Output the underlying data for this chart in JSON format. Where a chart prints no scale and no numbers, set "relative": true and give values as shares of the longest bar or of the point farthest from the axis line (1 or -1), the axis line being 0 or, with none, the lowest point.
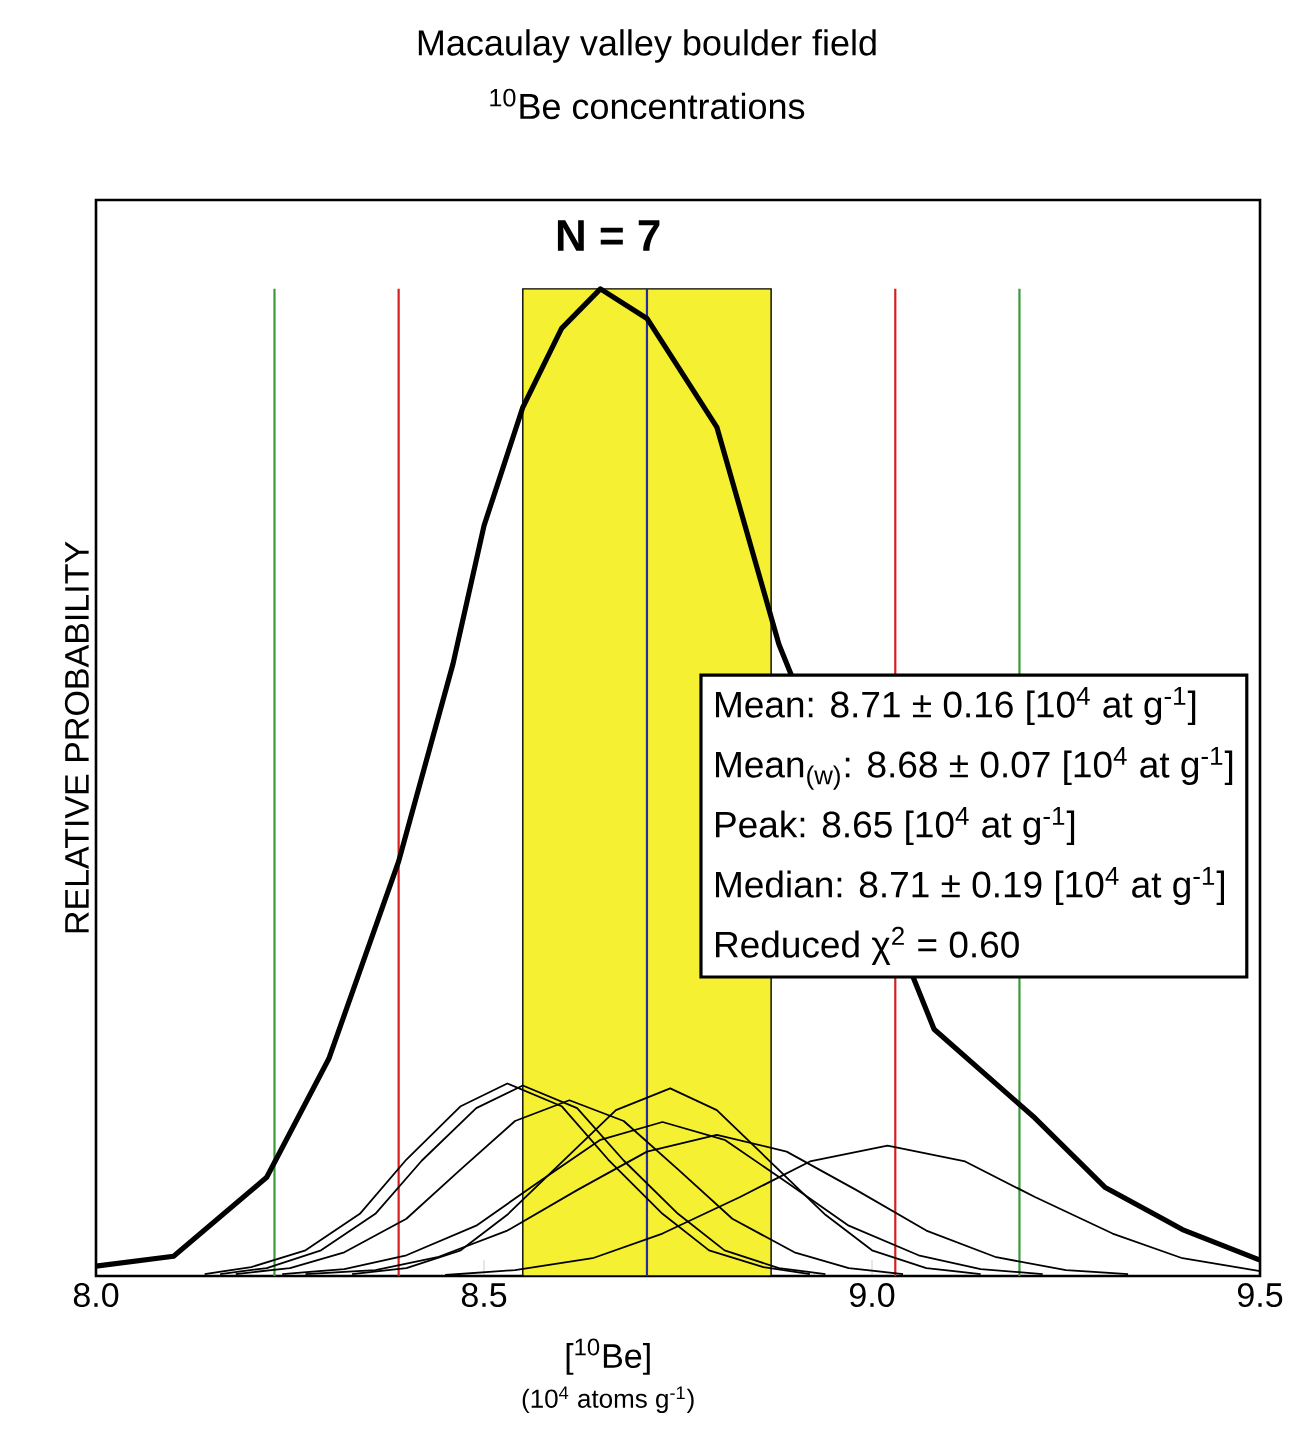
{
  "chart_data": {
    "type": "line",
    "title": "Macaulay valley boulder field",
    "subtitle": "$^{10}$Be concentrations",
    "xlabel": "[$^{10}$Be]",
    "ylabel": "RELATIVE PROBABILITY",
    "relative": true,
    "xlim": [
      8.0,
      9.5
    ],
    "xticks": [
      {
        "value": 8.0,
        "label": "8.0"
      },
      {
        "value": 8.5,
        "label": "8.5"
      },
      {
        "value": 9.0,
        "label": "9.0"
      },
      {
        "value": 9.5,
        "label": "9.5"
      }
    ],
    "series": [
      {
        "color": "#000000",
        "x": [
          8.0,
          8.1,
          8.22,
          8.3,
          8.39,
          8.46,
          8.5,
          8.55,
          8.6,
          8.65,
          8.71,
          8.8,
          8.88,
          9.08,
          9.21,
          9.3,
          9.37,
          9.4,
          9.5
        ],
        "values": [
          0.01,
          0.02,
          0.1,
          0.22,
          0.42,
          0.62,
          0.76,
          0.88,
          0.96,
          1.0,
          0.97,
          0.86,
          0.64,
          0.25,
          0.16,
          0.09,
          0.06,
          0.047,
          0.016
        ]
      },
      {
        "color": "#000000",
        "x": [
          8.14,
          8.2,
          8.27,
          8.34,
          8.4,
          8.47,
          8.53,
          8.6,
          8.66,
          8.73,
          8.79,
          8.86,
          8.92
        ],
        "values": [
          0.002,
          0.009,
          0.026,
          0.063,
          0.118,
          0.172,
          0.195,
          0.172,
          0.118,
          0.063,
          0.026,
          0.009,
          0.002
        ]
      },
      {
        "color": "#000000",
        "x": [
          8.16,
          8.22,
          8.29,
          8.36,
          8.42,
          8.49,
          8.55,
          8.62,
          8.68,
          8.75,
          8.81,
          8.88,
          8.94
        ],
        "values": [
          0.002,
          0.008,
          0.026,
          0.063,
          0.117,
          0.17,
          0.193,
          0.17,
          0.117,
          0.063,
          0.026,
          0.008,
          0.002
        ]
      },
      {
        "color": "#000000",
        "x": [
          8.18,
          8.25,
          8.32,
          8.4,
          8.47,
          8.54,
          8.61,
          8.68,
          8.75,
          8.82,
          8.9,
          8.97,
          9.04
        ],
        "values": [
          0.002,
          0.008,
          0.024,
          0.058,
          0.108,
          0.157,
          0.178,
          0.157,
          0.108,
          0.058,
          0.024,
          0.008,
          0.002
        ]
      },
      {
        "color": "#000000",
        "x": [
          8.33,
          8.4,
          8.47,
          8.53,
          8.6,
          8.67,
          8.74,
          8.8,
          8.87,
          8.94,
          9.0,
          9.07,
          9.14
        ],
        "values": [
          0.002,
          0.008,
          0.026,
          0.062,
          0.115,
          0.168,
          0.19,
          0.168,
          0.115,
          0.062,
          0.026,
          0.008,
          0.002
        ]
      },
      {
        "color": "#000000",
        "x": [
          8.24,
          8.32,
          8.4,
          8.49,
          8.57,
          8.65,
          8.73,
          8.81,
          8.89,
          8.97,
          9.06,
          9.14,
          9.22
        ],
        "values": [
          0.002,
          0.007,
          0.021,
          0.051,
          0.095,
          0.138,
          0.156,
          0.138,
          0.095,
          0.051,
          0.021,
          0.007,
          0.002
        ]
      },
      {
        "color": "#000000",
        "x": [
          8.27,
          8.36,
          8.44,
          8.53,
          8.62,
          8.71,
          8.8,
          8.89,
          8.98,
          9.07,
          9.16,
          9.25,
          9.33
        ],
        "values": [
          0.002,
          0.006,
          0.019,
          0.046,
          0.087,
          0.126,
          0.143,
          0.126,
          0.087,
          0.046,
          0.019,
          0.006,
          0.002
        ]
      },
      {
        "color": "#000000",
        "x": [
          8.45,
          8.54,
          8.64,
          8.73,
          8.83,
          8.92,
          9.02,
          9.12,
          9.21,
          9.31,
          9.4,
          9.5
        ],
        "values": [
          0.001,
          0.006,
          0.018,
          0.043,
          0.08,
          0.116,
          0.132,
          0.116,
          0.08,
          0.043,
          0.018,
          0.005
        ]
      }
    ],
    "bands": [
      {
        "axis": "x",
        "from": 8.55,
        "to": 8.87,
        "color": "#f5f032"
      }
    ],
    "ref_lines": [
      {
        "axis": "x",
        "value": 8.23,
        "color": "#3a9a3a"
      },
      {
        "axis": "x",
        "value": 8.39,
        "color": "#d42020"
      },
      {
        "axis": "x",
        "value": 8.71,
        "color": "#2a2aa0"
      },
      {
        "axis": "x",
        "value": 9.03,
        "color": "#d42020"
      },
      {
        "axis": "x",
        "value": 9.19,
        "color": "#3a9a3a"
      }
    ],
    "annotations": [
      "N = 7",
      "Mean: 8.71 ± 0.16 [10$^{4}$ at g$^{-1}$]",
      "Mean$_{(w)}$: 8.68 ± 0.07 [10$^{4}$ at g$^{-1}$]",
      "Peak: 8.65 [10$^{4}$ at g$^{-1}$]",
      "Median: 8.71 ± 0.19 [10$^{4}$ at g$^{-1}$]",
      "Reduced χ$^{2}$ = 0.60",
      "(10$^{4}$ atoms g$^{-1}$)"
    ]
  }
}
